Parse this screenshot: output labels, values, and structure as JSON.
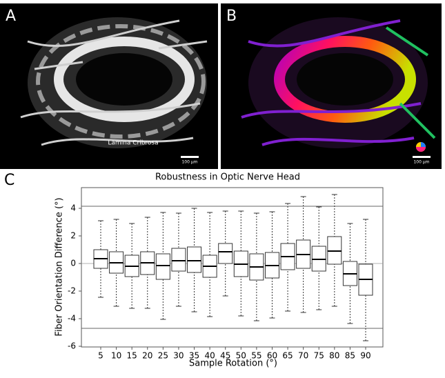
{
  "panels": {
    "a": {
      "label": "A",
      "annotation": "Lamina Cribrosa",
      "scale_bar": "100 µm"
    },
    "b": {
      "label": "B",
      "scale_bar": "100 µm"
    },
    "c": {
      "label": "C"
    }
  },
  "chart_data": {
    "type": "box",
    "title": "Robustness in Optic Nerve Head",
    "x_label": "Sample Rotation (°)",
    "y_label": "Fiber Orientation Difference (°)",
    "categories": [
      "5",
      "10",
      "15",
      "20",
      "25",
      "30",
      "35",
      "40",
      "45",
      "50",
      "55",
      "60",
      "65",
      "70",
      "75",
      "80",
      "85",
      "90"
    ],
    "min": [
      -2.45,
      -3.1,
      -3.25,
      -3.25,
      -4.05,
      -3.1,
      -3.5,
      -3.85,
      -2.35,
      -3.8,
      -4.15,
      -3.95,
      -3.45,
      -3.55,
      -3.35,
      -3.1,
      -4.35,
      -5.6
    ],
    "q1": [
      -0.35,
      -0.7,
      -0.95,
      -0.8,
      -1.15,
      -0.55,
      -0.65,
      -1.0,
      0.0,
      -0.95,
      -1.2,
      -1.05,
      -0.45,
      -0.35,
      -0.55,
      -0.05,
      -1.6,
      -2.3
    ],
    "median": [
      0.35,
      0.05,
      -0.2,
      0.05,
      -0.15,
      0.2,
      0.2,
      -0.2,
      0.85,
      -0.05,
      -0.25,
      -0.15,
      0.5,
      0.65,
      0.3,
      0.9,
      -0.75,
      -1.15
    ],
    "q3": [
      1.0,
      0.85,
      0.6,
      0.85,
      0.7,
      1.1,
      1.2,
      0.6,
      1.45,
      0.9,
      0.7,
      0.8,
      1.45,
      1.7,
      1.25,
      1.95,
      0.15,
      -0.05
    ],
    "max": [
      3.1,
      3.2,
      2.9,
      3.35,
      3.7,
      3.65,
      4.0,
      3.7,
      3.8,
      3.8,
      3.65,
      3.75,
      4.35,
      4.85,
      4.1,
      5.0,
      2.9,
      3.2
    ],
    "hlines": [
      4.15,
      -4.7
    ],
    "ylim": [
      -6.05,
      5.5
    ],
    "yticks": [
      4,
      2,
      0,
      -2,
      -4,
      -6
    ],
    "color": "#333333"
  }
}
